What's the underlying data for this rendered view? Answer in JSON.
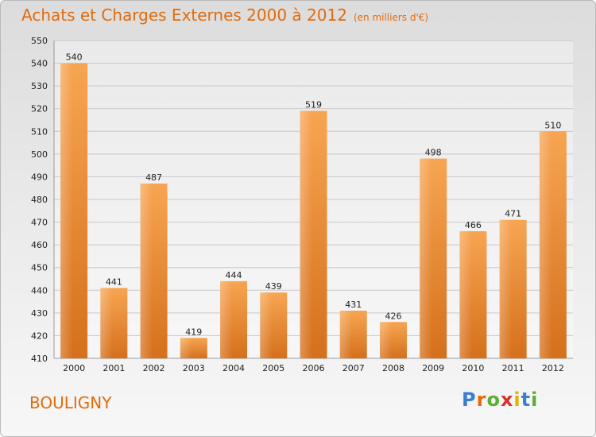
{
  "chart_data": {
    "type": "bar",
    "title": "Achats et Charges Externes 2000 à 2012",
    "subtitle": "(en milliers d'€)",
    "categories": [
      "2000",
      "2001",
      "2002",
      "2003",
      "2004",
      "2005",
      "2006",
      "2007",
      "2008",
      "2009",
      "2010",
      "2011",
      "2012"
    ],
    "values": [
      540,
      441,
      487,
      419,
      444,
      439,
      519,
      431,
      426,
      498,
      466,
      471,
      510
    ],
    "ylim": [
      410,
      550
    ],
    "yticks": [
      410,
      420,
      430,
      440,
      450,
      460,
      470,
      480,
      490,
      500,
      510,
      520,
      530,
      540,
      550
    ],
    "grid": true,
    "bar_color": "#f0922e"
  },
  "commune": "BOULIGNY",
  "logo": {
    "letters": [
      "P",
      "r",
      "o",
      "x",
      "i",
      "t",
      "i"
    ],
    "colors": [
      "#3a7fd0",
      "#e36b0a",
      "#5bb030",
      "#d8302a",
      "#e2b400",
      "#3a7fd0",
      "#5bb030"
    ]
  }
}
